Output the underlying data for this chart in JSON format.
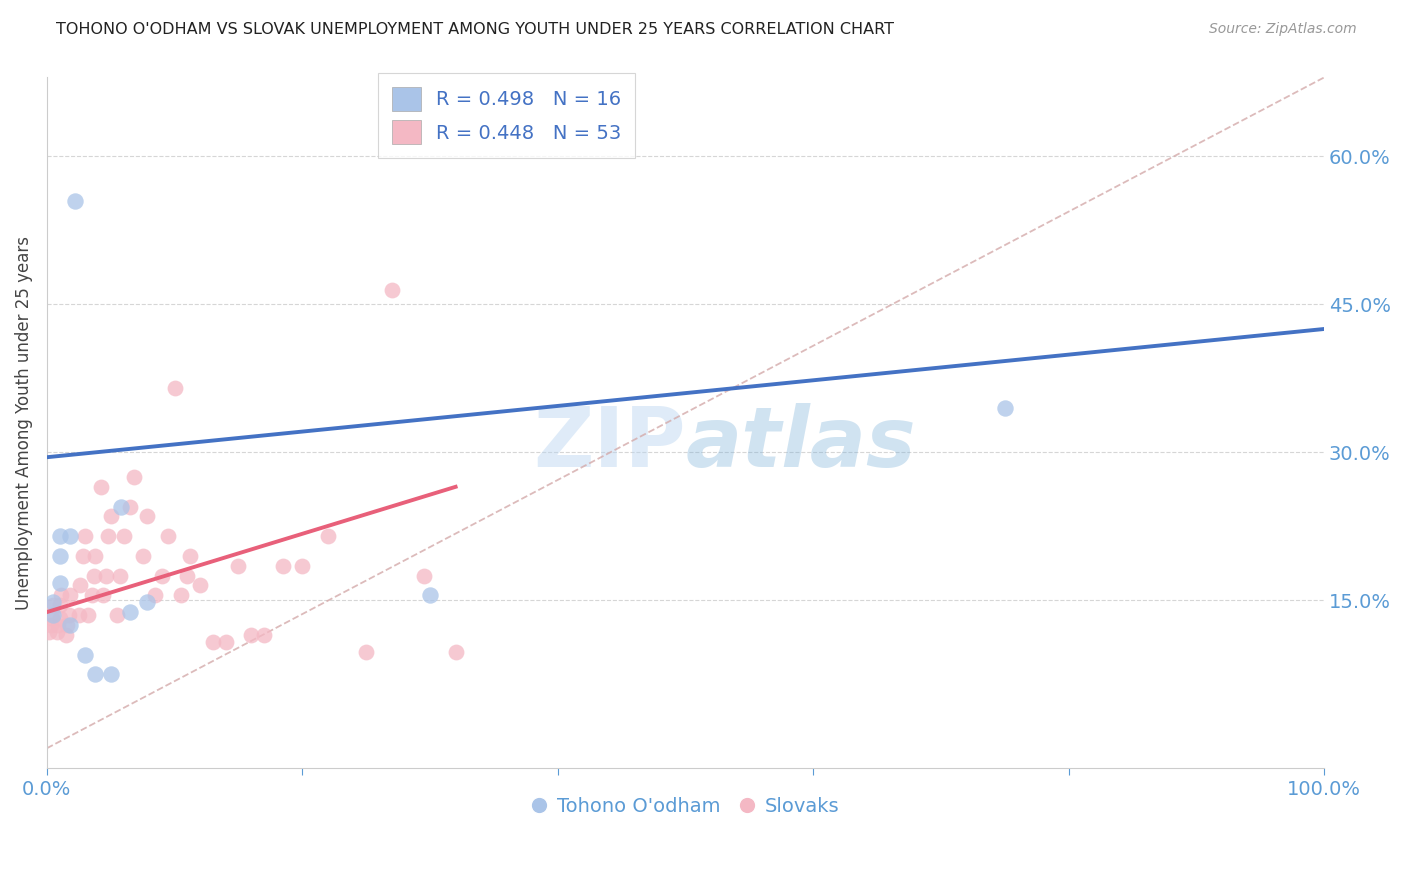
{
  "title": "TOHONO O'ODHAM VS SLOVAK UNEMPLOYMENT AMONG YOUTH UNDER 25 YEARS CORRELATION CHART",
  "source": "Source: ZipAtlas.com",
  "ylabel": "Unemployment Among Youth under 25 years",
  "ytick_labels": [
    "15.0%",
    "30.0%",
    "45.0%",
    "60.0%"
  ],
  "ytick_values": [
    0.15,
    0.3,
    0.45,
    0.6
  ],
  "xlim": [
    0.0,
    1.0
  ],
  "ylim": [
    -0.02,
    0.68
  ],
  "legend_entry1_label": "R = 0.498   N = 16",
  "legend_entry2_label": "R = 0.448   N = 53",
  "blue_color": "#4472c4",
  "pink_color": "#e8607a",
  "dot_blue": "#aac4e8",
  "dot_pink": "#f4b8c4",
  "tohono_x": [
    0.022,
    0.005,
    0.005,
    0.01,
    0.01,
    0.01,
    0.018,
    0.018,
    0.03,
    0.038,
    0.065,
    0.078,
    0.058,
    0.3,
    0.75,
    0.05
  ],
  "tohono_y": [
    0.555,
    0.148,
    0.135,
    0.168,
    0.195,
    0.215,
    0.215,
    0.125,
    0.095,
    0.075,
    0.138,
    0.148,
    0.245,
    0.155,
    0.345,
    0.075
  ],
  "slovak_x": [
    0.002,
    0.003,
    0.004,
    0.005,
    0.008,
    0.009,
    0.01,
    0.01,
    0.011,
    0.015,
    0.016,
    0.017,
    0.018,
    0.025,
    0.026,
    0.028,
    0.03,
    0.032,
    0.035,
    0.037,
    0.038,
    0.042,
    0.044,
    0.046,
    0.048,
    0.05,
    0.055,
    0.057,
    0.06,
    0.065,
    0.068,
    0.075,
    0.078,
    0.085,
    0.09,
    0.095,
    0.1,
    0.105,
    0.11,
    0.112,
    0.12,
    0.13,
    0.14,
    0.15,
    0.16,
    0.17,
    0.185,
    0.2,
    0.22,
    0.25,
    0.27,
    0.295,
    0.32
  ],
  "slovak_y": [
    0.118,
    0.125,
    0.132,
    0.145,
    0.118,
    0.125,
    0.132,
    0.145,
    0.155,
    0.115,
    0.125,
    0.135,
    0.155,
    0.135,
    0.165,
    0.195,
    0.215,
    0.135,
    0.155,
    0.175,
    0.195,
    0.265,
    0.155,
    0.175,
    0.215,
    0.235,
    0.135,
    0.175,
    0.215,
    0.245,
    0.275,
    0.195,
    0.235,
    0.155,
    0.175,
    0.215,
    0.365,
    0.155,
    0.175,
    0.195,
    0.165,
    0.108,
    0.108,
    0.185,
    0.115,
    0.115,
    0.185,
    0.185,
    0.215,
    0.098,
    0.465,
    0.175,
    0.098
  ],
  "blue_line_x": [
    0.0,
    1.0
  ],
  "blue_line_y": [
    0.295,
    0.425
  ],
  "pink_line_x": [
    0.0,
    0.32
  ],
  "pink_line_y": [
    0.138,
    0.265
  ],
  "diag_line_x": [
    0.0,
    1.0
  ],
  "diag_line_y": [
    0.0,
    0.68
  ],
  "watermark_zip": "ZIP",
  "watermark_atlas": "atlas",
  "background_color": "#ffffff",
  "grid_color": "#cccccc",
  "title_fontsize": 11.5,
  "axis_label_color": "#5b9bd5",
  "spine_color": "#cccccc"
}
